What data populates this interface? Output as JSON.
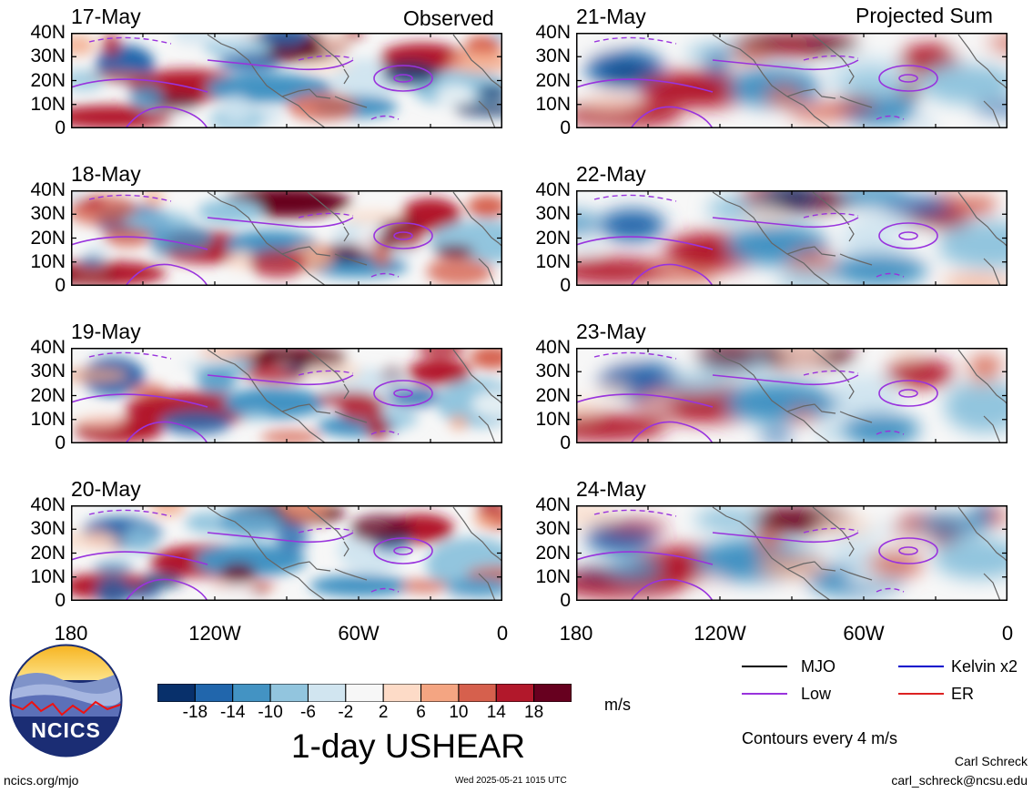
{
  "panels": {
    "left_header": "Observed",
    "right_header": "Projected Sum",
    "left_dates": [
      "17-May",
      "18-May",
      "19-May",
      "20-May"
    ],
    "right_dates": [
      "21-May",
      "22-May",
      "23-May",
      "24-May"
    ],
    "lat_labels": [
      "40N",
      "30N",
      "20N",
      "10N",
      "0"
    ],
    "lon_labels": [
      "180",
      "120W",
      "60W",
      "0"
    ]
  },
  "colorbar": {
    "title": "1-day USHEAR",
    "units": "m/s",
    "tick_labels": [
      "-18",
      "-14",
      "-10",
      "-6",
      "-2",
      "2",
      "6",
      "10",
      "14",
      "18"
    ],
    "colors": [
      "#08306b",
      "#2166ac",
      "#4393c3",
      "#92c5de",
      "#d1e5f0",
      "#f7f7f7",
      "#fddbc7",
      "#f4a582",
      "#d6604d",
      "#b2182b",
      "#67001f"
    ]
  },
  "legend": {
    "items": [
      {
        "label": "MJO",
        "color": "#000000"
      },
      {
        "label": "Kelvin x2",
        "color": "#0000cc"
      },
      {
        "label": "Low",
        "color": "#9933dd"
      },
      {
        "label": "ER",
        "color": "#dd2222"
      }
    ],
    "contour_note": "Contours every 4 m/s"
  },
  "footer": {
    "logo_text": "NCICS",
    "site": "ncics.org/mjo",
    "timestamp": "Wed 2025-05-21 1015 UTC",
    "author": "Carl Schreck",
    "email": "carl_schreck@ncsu.edu"
  }
}
